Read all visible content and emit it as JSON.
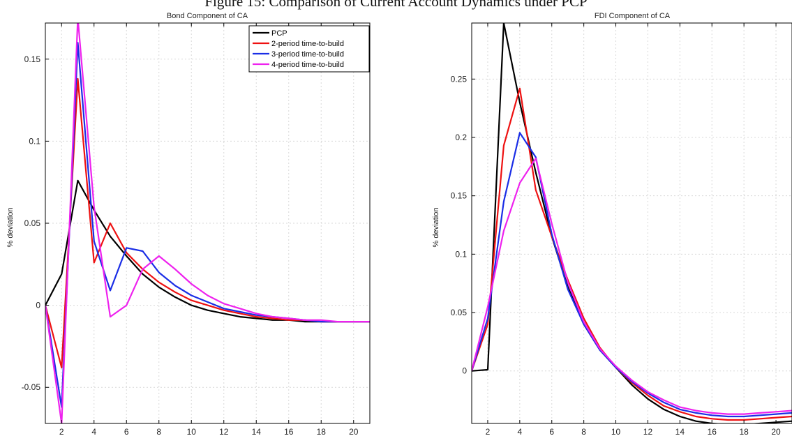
{
  "figure_title": "Figure 15: Comparison of Current Account Dynamics under PCP",
  "colors": {
    "PCP": "#000000",
    "2-period time-to-build": "#ee1111",
    "3-period time-to-build": "#1a2ee6",
    "4-period time-to-build": "#ee22ee"
  },
  "chart_data": [
    {
      "type": "line",
      "title": "Bond Component of CA",
      "xlabel": "",
      "ylabel": "% deviation",
      "xlim": [
        1,
        21
      ],
      "ylim": [
        -0.072,
        0.172
      ],
      "xticks": [
        2,
        4,
        6,
        8,
        10,
        12,
        14,
        16,
        18,
        20
      ],
      "yticks": [
        -0.05,
        0,
        0.05,
        0.1,
        0.15
      ],
      "ytick_labels": [
        "-0.05",
        "0",
        "0.05",
        "0.1",
        "0.15"
      ],
      "grid": true,
      "legend": "top-right",
      "x": [
        1,
        2,
        3,
        4,
        5,
        6,
        7,
        8,
        9,
        10,
        11,
        12,
        13,
        14,
        15,
        16,
        17,
        18,
        19,
        20,
        21
      ],
      "series": [
        {
          "name": "PCP",
          "values": [
            0,
            0.019,
            0.076,
            0.058,
            0.042,
            0.03,
            0.019,
            0.011,
            0.005,
            0.0,
            -0.003,
            -0.005,
            -0.007,
            -0.008,
            -0.009,
            -0.009,
            -0.01,
            -0.01,
            -0.01,
            -0.01,
            -0.01
          ]
        },
        {
          "name": "2-period time-to-build",
          "values": [
            0,
            -0.038,
            0.138,
            0.026,
            0.05,
            0.032,
            0.022,
            0.014,
            0.008,
            0.003,
            0.0,
            -0.003,
            -0.005,
            -0.007,
            -0.008,
            -0.009,
            -0.009,
            -0.01,
            -0.01,
            -0.01,
            -0.01
          ]
        },
        {
          "name": "3-period time-to-build",
          "values": [
            0,
            -0.062,
            0.16,
            0.039,
            0.009,
            0.035,
            0.033,
            0.02,
            0.012,
            0.006,
            0.002,
            -0.002,
            -0.004,
            -0.006,
            -0.007,
            -0.008,
            -0.009,
            -0.01,
            -0.01,
            -0.01,
            -0.01
          ]
        },
        {
          "name": "4-period time-to-build",
          "values": [
            0,
            -0.072,
            0.175,
            0.06,
            -0.007,
            0.0,
            0.022,
            0.03,
            0.022,
            0.013,
            0.006,
            0.001,
            -0.002,
            -0.005,
            -0.007,
            -0.008,
            -0.009,
            -0.009,
            -0.01,
            -0.01,
            -0.01
          ]
        }
      ]
    },
    {
      "type": "line",
      "title": "FDI Component of CA",
      "xlabel": "",
      "ylabel": "% deviation",
      "xlim": [
        1,
        21
      ],
      "ylim": [
        -0.045,
        0.298
      ],
      "xticks": [
        2,
        4,
        6,
        8,
        10,
        12,
        14,
        16,
        18,
        20
      ],
      "yticks": [
        0,
        0.05,
        0.1,
        0.15,
        0.2,
        0.25
      ],
      "ytick_labels": [
        "0",
        "0.05",
        "0.1",
        "0.15",
        "0.2",
        "0.25"
      ],
      "grid": true,
      "legend": "none",
      "x": [
        1,
        2,
        3,
        4,
        5,
        6,
        7,
        8,
        9,
        10,
        11,
        12,
        13,
        14,
        15,
        16,
        17,
        18,
        19,
        20,
        21
      ],
      "series": [
        {
          "name": "PCP",
          "values": [
            0,
            0.001,
            0.298,
            0.23,
            0.17,
            0.115,
            0.072,
            0.04,
            0.018,
            0.003,
            -0.012,
            -0.024,
            -0.033,
            -0.039,
            -0.043,
            -0.045,
            -0.046,
            -0.046,
            -0.045,
            -0.044,
            -0.043
          ]
        },
        {
          "name": "2-period time-to-build",
          "values": [
            0,
            0.04,
            0.193,
            0.242,
            0.155,
            0.115,
            0.078,
            0.045,
            0.02,
            0.003,
            -0.01,
            -0.021,
            -0.03,
            -0.035,
            -0.039,
            -0.041,
            -0.042,
            -0.042,
            -0.041,
            -0.04,
            -0.039
          ]
        },
        {
          "name": "3-period time-to-build",
          "values": [
            0,
            0.045,
            0.145,
            0.204,
            0.183,
            0.117,
            0.07,
            0.04,
            0.018,
            0.003,
            -0.009,
            -0.019,
            -0.027,
            -0.033,
            -0.036,
            -0.038,
            -0.039,
            -0.039,
            -0.038,
            -0.037,
            -0.036
          ]
        },
        {
          "name": "4-period time-to-build",
          "values": [
            0,
            0.055,
            0.12,
            0.161,
            0.182,
            0.126,
            0.076,
            0.042,
            0.019,
            0.004,
            -0.008,
            -0.018,
            -0.025,
            -0.031,
            -0.034,
            -0.036,
            -0.037,
            -0.037,
            -0.036,
            -0.035,
            -0.034
          ]
        }
      ]
    }
  ]
}
